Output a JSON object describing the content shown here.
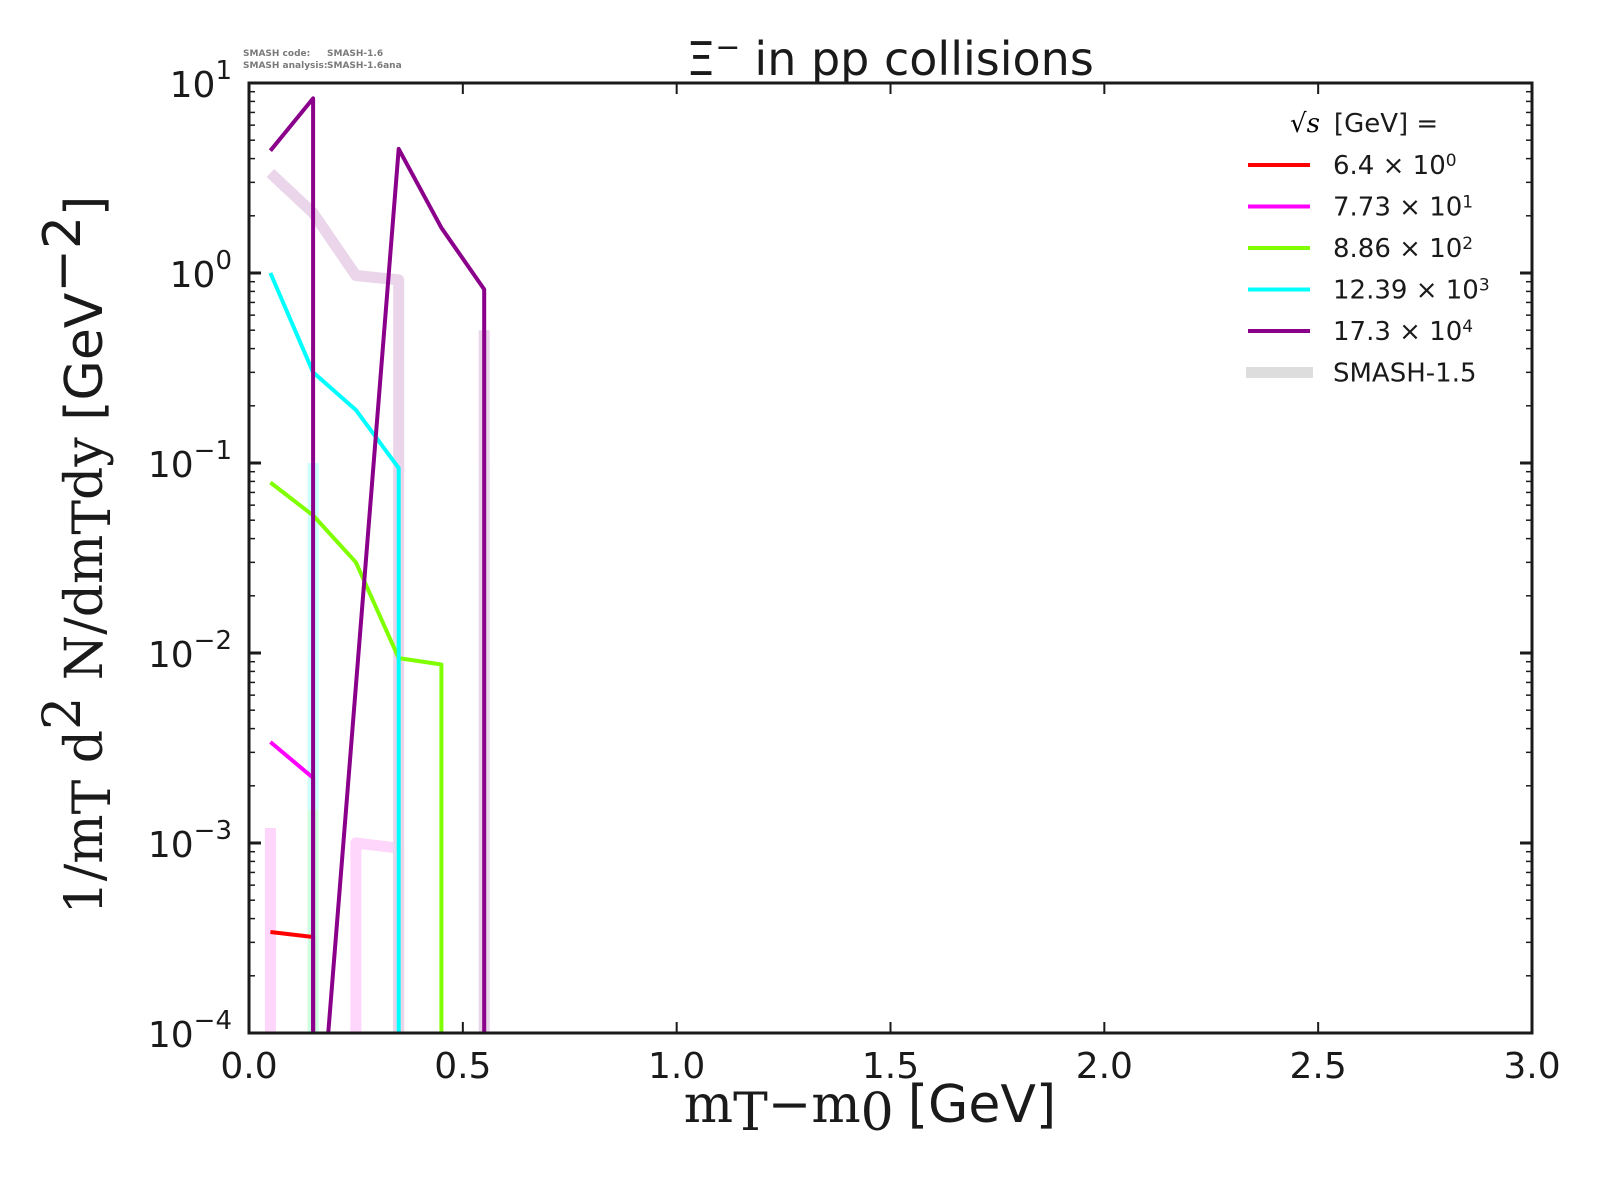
{
  "chart_data": {
    "type": "line",
    "title": "Ξ⁻ in pp collisions",
    "title_parts": {
      "particle": "Ξ",
      "charge": "−",
      "rest": "in pp collisions"
    },
    "watermark": {
      "line1_label": "SMASH code:",
      "line1_value": "SMASH-1.6",
      "line2_label": "SMASH analysis:",
      "line2_value": "SMASH-1.6ana"
    },
    "xlabel": "mT−m0 [GeV]",
    "xlabel_parts": {
      "m": "m",
      "T": "T",
      "minus": "−",
      "m0": "m",
      "zero": "0",
      "unit": "[GeV]"
    },
    "ylabel": "1/mT d2 N/dmTdy [GeV−2]",
    "ylabel_parts": {
      "a": "1/m",
      "b": "T",
      "c": " d",
      "d": "2",
      "e": " N/dm",
      "f": "T",
      "g": "dy",
      "h": " [GeV",
      "i": "−2",
      "j": "]"
    },
    "xscale": "linear",
    "yscale": "log",
    "xlim": [
      0.0,
      3.0
    ],
    "ylim": [
      0.0001,
      10
    ],
    "x_ticks": [
      {
        "value": 0.0,
        "label": "0.0"
      },
      {
        "value": 0.5,
        "label": "0.5"
      },
      {
        "value": 1.0,
        "label": "1.0"
      },
      {
        "value": 1.5,
        "label": "1.5"
      },
      {
        "value": 2.0,
        "label": "2.0"
      },
      {
        "value": 2.5,
        "label": "2.5"
      },
      {
        "value": 3.0,
        "label": "3.0"
      }
    ],
    "y_ticks": [
      {
        "exp": 1,
        "base": "10",
        "sup": "1"
      },
      {
        "exp": 0,
        "base": "10",
        "sup": "0"
      },
      {
        "exp": -1,
        "base": "10",
        "sup": "−1"
      },
      {
        "exp": -2,
        "base": "10",
        "sup": "−2"
      },
      {
        "exp": -3,
        "base": "10",
        "sup": "−3"
      },
      {
        "exp": -4,
        "base": "10",
        "sup": "−4"
      }
    ],
    "grid": false,
    "legend": {
      "placement": "top-right",
      "title": "√s  [GeV] =",
      "title_sqrt": "√s",
      "title_rest": "[GeV] ="
    },
    "series": [
      {
        "name": "6.4 × 10⁰",
        "mant": "6.4 × 10",
        "sup": "0",
        "color": "#ff0000",
        "x": [
          0.05,
          0.15,
          0.15
        ],
        "y": [
          0.00034,
          0.00032,
          1e-05
        ]
      },
      {
        "name": "7.73 × 10¹",
        "mant": "7.73 × 10",
        "sup": "1",
        "color": "#ff00ff",
        "x": [
          0.05,
          0.15,
          0.15
        ],
        "y": [
          0.0034,
          0.0022,
          1e-05
        ]
      },
      {
        "name": "8.86 × 10²",
        "mant": "8.86 × 10",
        "sup": "2",
        "color": "#7fff00",
        "x": [
          0.05,
          0.15,
          0.25,
          0.35,
          0.45,
          0.45
        ],
        "y": [
          0.079,
          0.053,
          0.03,
          0.0094,
          0.0087,
          1e-05
        ]
      },
      {
        "name": "12.39 × 10³",
        "mant": "12.39 × 10",
        "sup": "3",
        "color": "#00ffff",
        "x": [
          0.05,
          0.15,
          0.25,
          0.35,
          0.35
        ],
        "y": [
          1.0,
          0.3,
          0.19,
          0.094,
          1e-05
        ]
      },
      {
        "name": "17.3 × 10⁴",
        "mant": "17.3 × 10",
        "sup": "4",
        "color": "#8b008b",
        "x": [
          0.05,
          0.15,
          0.15,
          0.35,
          0.45,
          0.55,
          0.55
        ],
        "y": [
          4.4,
          8.3,
          1e-05,
          4.5,
          1.73,
          0.82,
          1e-05
        ]
      }
    ],
    "reference": {
      "name": "SMASH-1.5",
      "legend_color": "#dddddd",
      "curves": [
        {
          "color": "#ffd6fb",
          "x": [
            0.05,
            0.05
          ],
          "y": [
            0.0012,
            1e-05
          ]
        },
        {
          "color": "#ffd6fb",
          "x": [
            0.25,
            0.25,
            0.35,
            0.35
          ],
          "y": [
            1e-05,
            0.001,
            0.00094,
            1e-05
          ]
        },
        {
          "color": "#ccffe0",
          "x": [
            0.15,
            0.15
          ],
          "y": [
            0.01,
            1e-05
          ]
        },
        {
          "color": "#ccffff",
          "x": [
            0.15,
            0.15
          ],
          "y": [
            0.1,
            0.0015
          ]
        },
        {
          "color": "#ccffff",
          "x": [
            0.35,
            0.35
          ],
          "y": [
            1e-05,
            0.001
          ]
        },
        {
          "color": "#ccffff",
          "x": [
            0.55,
            0.55
          ],
          "y": [
            0.1,
            1e-05
          ]
        },
        {
          "color": "#ead5ea",
          "x": [
            0.05,
            0.15,
            0.25,
            0.35,
            0.35
          ],
          "y": [
            3.36,
            2.07,
            0.97,
            0.92,
            1e-05
          ]
        },
        {
          "color": "#ead5ea",
          "x": [
            0.55,
            0.55
          ],
          "y": [
            0.5,
            1e-05
          ]
        }
      ]
    }
  }
}
